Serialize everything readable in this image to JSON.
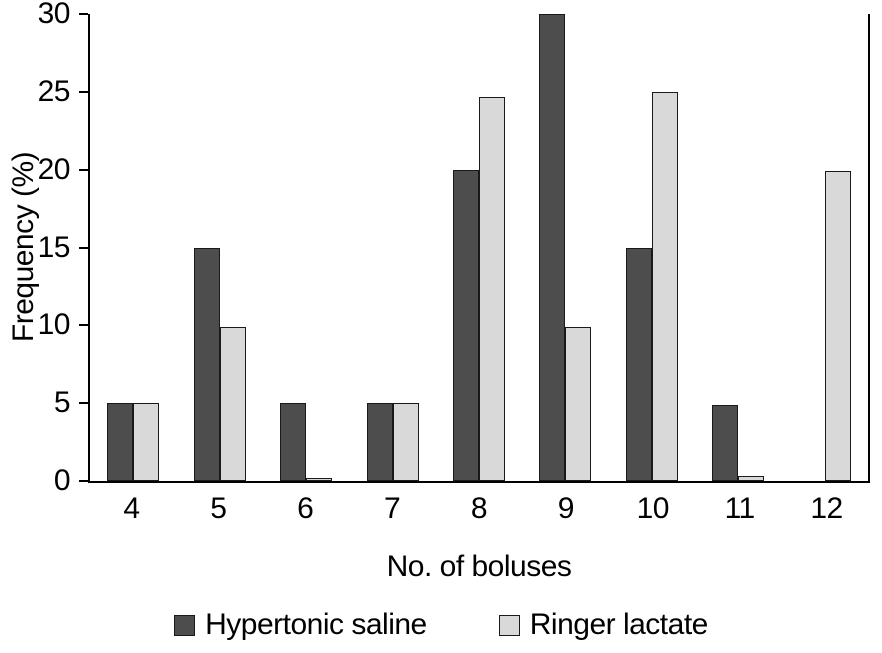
{
  "chart_data": {
    "type": "bar",
    "title": "",
    "xlabel": "No. of boluses",
    "ylabel": "Frequency (%)",
    "ylim": [
      0,
      30
    ],
    "ytick_step": 5,
    "grid": false,
    "legend_position": "bottom",
    "categories": [
      "4",
      "5",
      "6",
      "7",
      "8",
      "9",
      "10",
      "11",
      "12"
    ],
    "series": [
      {
        "name": "Hypertonic saline",
        "color": "#4d4d4d",
        "values": [
          5,
          15,
          5,
          5,
          20,
          30,
          15,
          4.9,
          0
        ]
      },
      {
        "name": "Ringer lactate",
        "color": "#d9d9d9",
        "values": [
          5,
          9.9,
          0.2,
          5,
          24.7,
          9.9,
          25,
          0.3,
          19.9
        ]
      }
    ]
  },
  "colors": {
    "axis": "#000000",
    "bar_border": "#1a1a1a"
  }
}
